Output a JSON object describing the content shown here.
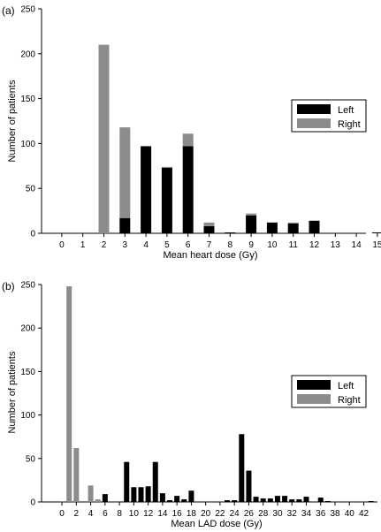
{
  "colors": {
    "left": "#000000",
    "right": "#8c8c8c",
    "axis": "#000000"
  },
  "chart_data": [
    {
      "type": "bar",
      "stacked": true,
      "panel_label": "(a)",
      "xlabel": "Mean heart dose (Gy)",
      "ylabel": "Number of patients",
      "ylim": [
        0,
        250
      ],
      "yticks": [
        0,
        50,
        100,
        150,
        200,
        250
      ],
      "categories": [
        "0",
        "1",
        "2",
        "3",
        "4",
        "5",
        "6",
        "7",
        "8",
        "9",
        "10",
        "11",
        "12",
        "13",
        "14",
        "15"
      ],
      "legend": {
        "position": "center-right",
        "items": [
          "Left",
          "Right"
        ]
      },
      "series": [
        {
          "name": "Left",
          "values": [
            0,
            0,
            0,
            17,
            97,
            73,
            97,
            8,
            1,
            20,
            12,
            11,
            14,
            0,
            0,
            1
          ]
        },
        {
          "name": "Right",
          "values": [
            0,
            0,
            210,
            101,
            0,
            1,
            14,
            4,
            0,
            2,
            0,
            1,
            0,
            0,
            0,
            0
          ]
        }
      ]
    },
    {
      "type": "bar",
      "stacked": true,
      "panel_label": "(b)",
      "xlabel": "Mean LAD dose (Gy)",
      "ylabel": "Number of patients",
      "ylim": [
        0,
        250
      ],
      "yticks": [
        0,
        50,
        100,
        150,
        200,
        250
      ],
      "x": [
        0,
        1,
        2,
        3,
        4,
        5,
        6,
        7,
        8,
        9,
        10,
        11,
        12,
        13,
        14,
        15,
        16,
        17,
        18,
        19,
        20,
        21,
        22,
        23,
        24,
        25,
        26,
        27,
        28,
        29,
        30,
        31,
        32,
        33,
        34,
        35,
        36,
        37,
        38,
        39,
        40,
        41,
        42,
        43
      ],
      "xtick_labels": [
        "0",
        "2",
        "4",
        "6",
        "8",
        "10",
        "12",
        "14",
        "16",
        "18",
        "20",
        "22",
        "24",
        "26",
        "28",
        "30",
        "32",
        "34",
        "36",
        "38",
        "40",
        "42"
      ],
      "legend": {
        "position": "center-right",
        "items": [
          "Left",
          "Right"
        ]
      },
      "series": [
        {
          "name": "Left",
          "values": [
            0,
            0,
            0,
            0,
            0,
            0,
            9,
            0,
            0,
            46,
            17,
            17,
            18,
            46,
            10,
            2,
            7,
            3,
            13,
            0,
            0,
            0,
            0,
            2,
            2,
            78,
            36,
            6,
            4,
            4,
            7,
            7,
            3,
            3,
            6,
            0,
            5,
            1,
            0,
            0,
            0,
            0,
            0,
            1
          ]
        },
        {
          "name": "Right",
          "values": [
            1,
            248,
            62,
            0,
            19,
            3,
            0,
            0,
            0,
            0,
            0,
            0,
            0,
            0,
            0,
            0,
            0,
            0,
            0,
            0,
            0,
            0,
            0,
            0,
            0,
            0,
            0,
            0,
            0,
            0,
            0,
            0,
            0,
            0,
            0,
            0,
            0,
            0,
            0,
            0,
            0,
            0,
            0,
            0
          ]
        }
      ]
    }
  ]
}
